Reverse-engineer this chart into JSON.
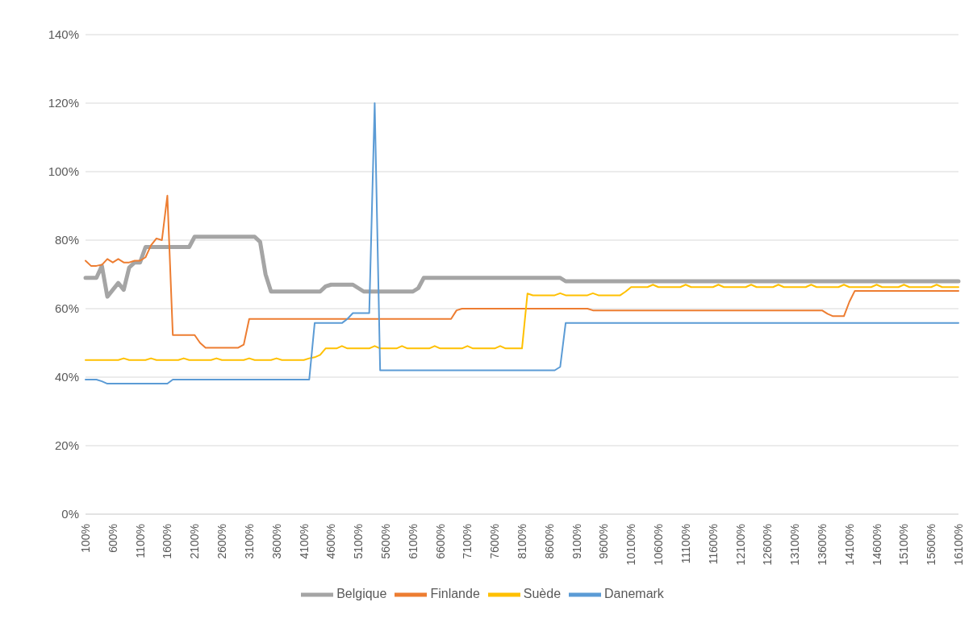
{
  "chart_data": {
    "type": "line",
    "categories": [
      "100%",
      null,
      null,
      null,
      null,
      "600%",
      null,
      null,
      null,
      null,
      "1100%",
      null,
      null,
      null,
      null,
      "1600%",
      null,
      null,
      null,
      null,
      "2100%",
      null,
      null,
      null,
      null,
      "2600%",
      null,
      null,
      null,
      null,
      "3100%",
      null,
      null,
      null,
      null,
      "3600%",
      null,
      null,
      null,
      null,
      "4100%",
      null,
      null,
      null,
      null,
      "4600%",
      null,
      null,
      null,
      null,
      "5100%",
      null,
      null,
      null,
      null,
      "5600%",
      null,
      null,
      null,
      null,
      "6100%",
      null,
      null,
      null,
      null,
      "6600%",
      null,
      null,
      null,
      null,
      "7100%",
      null,
      null,
      null,
      null,
      "7600%",
      null,
      null,
      null,
      null,
      "8100%",
      null,
      null,
      null,
      null,
      "8600%",
      null,
      null,
      null,
      null,
      "9100%",
      null,
      null,
      null,
      null,
      "9600%",
      null,
      null,
      null,
      null,
      "10100%",
      null,
      null,
      null,
      null,
      "10600%",
      null,
      null,
      null,
      null,
      "11100%",
      null,
      null,
      null,
      null,
      "11600%",
      null,
      null,
      null,
      null,
      "12100%",
      null,
      null,
      null,
      null,
      "12600%",
      null,
      null,
      null,
      null,
      "13100%",
      null,
      null,
      null,
      null,
      "13600%",
      null,
      null,
      null,
      null,
      "14100%",
      null,
      null,
      null,
      null,
      "14600%",
      null,
      null,
      null,
      null,
      "15100%",
      null,
      null,
      null,
      null,
      "15600%",
      null,
      null,
      null,
      null,
      "16100%"
    ],
    "series": [
      {
        "name": "Belgique",
        "color": "#a5a5a5",
        "values": [
          69,
          69,
          69,
          72.5,
          63.5,
          65.5,
          67.5,
          65.5,
          72,
          73.5,
          73.5,
          78,
          78,
          78,
          78,
          78,
          78,
          78,
          78,
          78,
          81,
          81,
          81,
          81,
          81,
          81,
          81,
          81,
          81,
          81,
          81,
          81,
          79.5,
          70,
          65,
          65,
          65,
          65,
          65,
          65,
          65,
          65,
          65,
          65,
          66.5,
          67,
          67,
          67,
          67,
          67,
          66,
          65,
          65,
          65,
          65,
          65,
          65,
          65,
          65,
          65,
          65,
          66,
          69,
          69,
          69,
          69,
          69,
          69,
          69,
          69,
          69,
          69,
          69,
          69,
          69,
          69,
          69,
          69,
          69,
          69,
          69,
          69,
          69,
          69,
          69,
          69,
          69,
          69,
          68,
          68,
          68,
          68,
          68,
          68,
          68,
          68,
          68,
          68,
          68,
          68,
          68,
          68,
          68,
          68,
          68,
          68,
          68,
          68,
          68,
          68,
          68,
          68,
          68,
          68,
          68,
          68,
          68,
          68,
          68,
          68,
          68,
          68,
          68,
          68,
          68,
          68,
          68,
          68,
          68,
          68,
          68,
          68,
          68,
          68,
          68,
          68,
          68,
          68,
          68,
          68,
          68,
          68,
          68,
          68,
          68,
          68,
          68,
          68,
          68,
          68,
          68,
          68,
          68,
          68,
          68,
          68,
          68,
          68,
          68,
          68,
          68
        ]
      },
      {
        "name": "Finlande",
        "color": "#ed7d31",
        "values": [
          74,
          72.5,
          72.5,
          72.8,
          74.5,
          73.5,
          74.5,
          73.5,
          73.5,
          74,
          74,
          75,
          78.5,
          80.5,
          80,
          93,
          52.3,
          52.3,
          52.3,
          52.3,
          52.3,
          50,
          48.6,
          48.6,
          48.6,
          48.6,
          48.6,
          48.6,
          48.6,
          49.5,
          57,
          57,
          57,
          57,
          57,
          57,
          57,
          57,
          57,
          57,
          57,
          57,
          57,
          57,
          57,
          57,
          57,
          57,
          57,
          57,
          57,
          57,
          57,
          57,
          57,
          57,
          57,
          57,
          57,
          57,
          57,
          57,
          57,
          57,
          57,
          57,
          57,
          57,
          59.5,
          60,
          60,
          60,
          60,
          60,
          60,
          60,
          60,
          60,
          60,
          60,
          60,
          60,
          60,
          60,
          60,
          60,
          60,
          60,
          60,
          60,
          60,
          60,
          60,
          59.5,
          59.5,
          59.5,
          59.5,
          59.5,
          59.5,
          59.5,
          59.5,
          59.5,
          59.5,
          59.5,
          59.5,
          59.5,
          59.5,
          59.5,
          59.5,
          59.5,
          59.5,
          59.5,
          59.5,
          59.5,
          59.5,
          59.5,
          59.5,
          59.5,
          59.5,
          59.5,
          59.5,
          59.5,
          59.5,
          59.5,
          59.5,
          59.5,
          59.5,
          59.5,
          59.5,
          59.5,
          59.5,
          59.5,
          59.5,
          59.5,
          59.5,
          59.5,
          58.5,
          57.8,
          57.8,
          57.8,
          62,
          65.2,
          65.2,
          65.2,
          65.2,
          65.2,
          65.2,
          65.2,
          65.2,
          65.2,
          65.2,
          65.2,
          65.2,
          65.2,
          65.2,
          65.2,
          65.2,
          65.2,
          65.2,
          65.2,
          65.2
        ]
      },
      {
        "name": "Suède",
        "color": "#ffc000",
        "values": [
          45,
          45,
          45,
          45,
          45,
          45,
          45,
          45.5,
          45,
          45,
          45,
          45,
          45.5,
          45,
          45,
          45,
          45,
          45,
          45.5,
          45,
          45,
          45,
          45,
          45,
          45.5,
          45,
          45,
          45,
          45,
          45,
          45.5,
          45,
          45,
          45,
          45,
          45.5,
          45,
          45,
          45,
          45,
          45,
          45.5,
          45.8,
          46.5,
          48.4,
          48.4,
          48.4,
          49.1,
          48.4,
          48.4,
          48.4,
          48.4,
          48.4,
          49.1,
          48.4,
          48.4,
          48.4,
          48.4,
          49.1,
          48.4,
          48.4,
          48.4,
          48.4,
          48.4,
          49.1,
          48.4,
          48.4,
          48.4,
          48.4,
          48.4,
          49.1,
          48.4,
          48.4,
          48.4,
          48.4,
          48.4,
          49.1,
          48.4,
          48.4,
          48.4,
          48.4,
          64.4,
          63.9,
          63.9,
          63.9,
          63.9,
          63.9,
          64.5,
          63.9,
          63.9,
          63.9,
          63.9,
          63.9,
          64.5,
          63.9,
          63.9,
          63.9,
          63.9,
          63.9,
          65,
          66.3,
          66.3,
          66.3,
          66.3,
          67,
          66.3,
          66.3,
          66.3,
          66.3,
          66.3,
          67,
          66.3,
          66.3,
          66.3,
          66.3,
          66.3,
          67,
          66.3,
          66.3,
          66.3,
          66.3,
          66.3,
          67,
          66.3,
          66.3,
          66.3,
          66.3,
          67,
          66.3,
          66.3,
          66.3,
          66.3,
          66.3,
          67,
          66.3,
          66.3,
          66.3,
          66.3,
          66.3,
          67,
          66.3,
          66.3,
          66.3,
          66.3,
          66.3,
          67,
          66.3,
          66.3,
          66.3,
          66.3,
          67,
          66.3,
          66.3,
          66.3,
          66.3,
          66.3,
          67,
          66.3,
          66.3,
          66.3,
          66.3
        ]
      },
      {
        "name": "Danemark",
        "color": "#5b9bd5",
        "values": [
          39.3,
          39.3,
          39.3,
          38.8,
          38.1,
          38.1,
          38.1,
          38.1,
          38.1,
          38.1,
          38.1,
          38.1,
          38.1,
          38.1,
          38.1,
          38.1,
          39.3,
          39.3,
          39.3,
          39.3,
          39.3,
          39.3,
          39.3,
          39.3,
          39.3,
          39.3,
          39.3,
          39.3,
          39.3,
          39.3,
          39.3,
          39.3,
          39.3,
          39.3,
          39.3,
          39.3,
          39.3,
          39.3,
          39.3,
          39.3,
          39.3,
          39.3,
          55.8,
          55.8,
          55.8,
          55.8,
          55.8,
          55.8,
          57,
          58.7,
          58.7,
          58.7,
          58.7,
          120,
          42,
          42,
          42,
          42,
          42,
          42,
          42,
          42,
          42,
          42,
          42,
          42,
          42,
          42,
          42,
          42,
          42,
          42,
          42,
          42,
          42,
          42,
          42,
          42,
          42,
          42,
          42,
          42,
          42,
          42,
          42,
          42,
          42,
          43,
          55.8,
          55.8,
          55.8,
          55.8,
          55.8,
          55.8,
          55.8,
          55.8,
          55.8,
          55.8,
          55.8,
          55.8,
          55.8,
          55.8,
          55.8,
          55.8,
          55.8,
          55.8,
          55.8,
          55.8,
          55.8,
          55.8,
          55.8,
          55.8,
          55.8,
          55.8,
          55.8,
          55.8,
          55.8,
          55.8,
          55.8,
          55.8,
          55.8,
          55.8,
          55.8,
          55.8,
          55.8,
          55.8,
          55.8,
          55.8,
          55.8,
          55.8,
          55.8,
          55.8,
          55.8,
          55.8,
          55.8,
          55.8,
          55.8,
          55.8,
          55.8,
          55.8,
          55.8,
          55.8,
          55.8,
          55.8,
          55.8,
          55.8,
          55.8,
          55.8,
          55.8,
          55.8,
          55.8,
          55.8,
          55.8,
          55.8,
          55.8,
          55.8,
          55.8,
          55.8,
          55.8,
          55.8,
          55.8
        ]
      }
    ],
    "ylim": [
      0,
      140
    ],
    "yticks": [
      {
        "value": 0,
        "label": "0%"
      },
      {
        "value": 20,
        "label": "20%"
      },
      {
        "value": 40,
        "label": "40%"
      },
      {
        "value": 60,
        "label": "60%"
      },
      {
        "value": 80,
        "label": "80%"
      },
      {
        "value": 100,
        "label": "100%"
      },
      {
        "value": 120,
        "label": "120%"
      },
      {
        "value": 140,
        "label": "140%"
      }
    ],
    "grid": "y",
    "legend": "bottom",
    "marker": "none",
    "line_style": "solid"
  }
}
